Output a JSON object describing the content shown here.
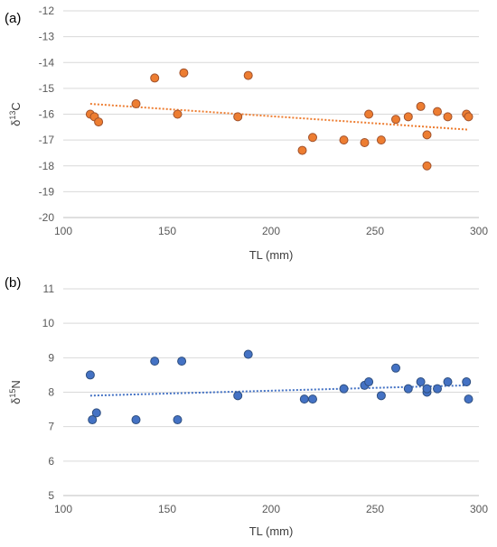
{
  "chart_data": [
    {
      "type": "scatter",
      "panel_label": "(a)",
      "xlabel": "TL (mm)",
      "ylabel": {
        "prefix": "δ",
        "sup": "13",
        "suffix": "C"
      },
      "xlim": [
        100,
        300
      ],
      "ylim": [
        -20,
        -12
      ],
      "xticks": [
        100,
        150,
        200,
        250,
        300
      ],
      "yticks": [
        -12,
        -13,
        -14,
        -15,
        -16,
        -17,
        -18,
        -19,
        -20
      ],
      "grid": "horizontal",
      "marker_color": "#ED7D31",
      "marker_edge": "#A0522D",
      "trendline": {
        "style": "dotted",
        "color": "#ED7D31",
        "x": [
          113,
          295
        ],
        "y": [
          -15.6,
          -16.6
        ]
      },
      "points": [
        {
          "x": 113,
          "y": -16.0
        },
        {
          "x": 115,
          "y": -16.1
        },
        {
          "x": 117,
          "y": -16.3
        },
        {
          "x": 135,
          "y": -15.6
        },
        {
          "x": 144,
          "y": -14.6
        },
        {
          "x": 155,
          "y": -16.0
        },
        {
          "x": 158,
          "y": -14.4
        },
        {
          "x": 184,
          "y": -16.1
        },
        {
          "x": 189,
          "y": -14.5
        },
        {
          "x": 215,
          "y": -17.4
        },
        {
          "x": 220,
          "y": -16.9
        },
        {
          "x": 235,
          "y": -17.0
        },
        {
          "x": 245,
          "y": -17.1
        },
        {
          "x": 247,
          "y": -16.0
        },
        {
          "x": 253,
          "y": -17.0
        },
        {
          "x": 260,
          "y": -16.2
        },
        {
          "x": 266,
          "y": -16.1
        },
        {
          "x": 272,
          "y": -15.7
        },
        {
          "x": 275,
          "y": -16.8
        },
        {
          "x": 275,
          "y": -18.0
        },
        {
          "x": 280,
          "y": -15.9
        },
        {
          "x": 285,
          "y": -16.1
        },
        {
          "x": 294,
          "y": -16.0
        },
        {
          "x": 295,
          "y": -16.1
        }
      ]
    },
    {
      "type": "scatter",
      "panel_label": "(b)",
      "xlabel": "TL (mm)",
      "ylabel": {
        "prefix": "δ",
        "sup": "15",
        "suffix": "N"
      },
      "xlim": [
        100,
        300
      ],
      "ylim": [
        5,
        11
      ],
      "xticks": [
        100,
        150,
        200,
        250,
        300
      ],
      "yticks": [
        5,
        6,
        7,
        8,
        9,
        10,
        11
      ],
      "grid": "horizontal",
      "marker_color": "#4472C4",
      "marker_edge": "#2F4F7F",
      "trendline": {
        "style": "dotted",
        "color": "#4472C4",
        "x": [
          113,
          295
        ],
        "y": [
          7.9,
          8.2
        ]
      },
      "points": [
        {
          "x": 113,
          "y": 8.5
        },
        {
          "x": 114,
          "y": 7.2
        },
        {
          "x": 116,
          "y": 7.4
        },
        {
          "x": 135,
          "y": 7.2
        },
        {
          "x": 144,
          "y": 8.9
        },
        {
          "x": 155,
          "y": 7.2
        },
        {
          "x": 157,
          "y": 8.9
        },
        {
          "x": 184,
          "y": 7.9
        },
        {
          "x": 189,
          "y": 9.1
        },
        {
          "x": 216,
          "y": 7.8
        },
        {
          "x": 220,
          "y": 7.8
        },
        {
          "x": 235,
          "y": 8.1
        },
        {
          "x": 245,
          "y": 8.2
        },
        {
          "x": 247,
          "y": 8.3
        },
        {
          "x": 253,
          "y": 7.9
        },
        {
          "x": 260,
          "y": 8.7
        },
        {
          "x": 266,
          "y": 8.1
        },
        {
          "x": 272,
          "y": 8.3
        },
        {
          "x": 275,
          "y": 8.0
        },
        {
          "x": 275,
          "y": 8.1
        },
        {
          "x": 280,
          "y": 8.1
        },
        {
          "x": 285,
          "y": 8.3
        },
        {
          "x": 294,
          "y": 8.3
        },
        {
          "x": 295,
          "y": 7.8
        }
      ]
    }
  ]
}
